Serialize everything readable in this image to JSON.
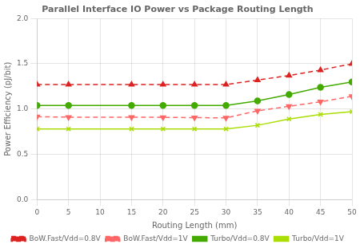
{
  "chart_data": {
    "type": "line",
    "title": "Parallel Interface IO Power vs Package Routing Length",
    "xlabel": "Routing Length (mm)",
    "ylabel": "Power Efficiency (pJ/bit)",
    "x": [
      0,
      5,
      15,
      20,
      25,
      30,
      35,
      40,
      45,
      50
    ],
    "series": [
      {
        "name": "BoW.Fast/Vdd=0.8V",
        "color": "#dd2222",
        "line_style": "dashed",
        "marker": "triangle-up",
        "values": [
          1.27,
          1.27,
          1.27,
          1.27,
          1.27,
          1.27,
          1.32,
          1.37,
          1.43,
          1.5
        ]
      },
      {
        "name": "BoW.Fast/Vdd=1V",
        "color": "#ff6666",
        "line_style": "dashed",
        "marker": "triangle-down",
        "values": [
          0.915,
          0.91,
          0.91,
          0.908,
          0.905,
          0.902,
          0.98,
          1.03,
          1.08,
          1.14
        ]
      },
      {
        "name": "Turbo/Vdd=0.8V",
        "color": "#44aa00",
        "line_style": "solid",
        "marker": "circle",
        "values": [
          1.04,
          1.04,
          1.04,
          1.04,
          1.04,
          1.04,
          1.09,
          1.16,
          1.24,
          1.3
        ]
      },
      {
        "name": "Turbo/Vdd=1V",
        "color": "#aadd00",
        "line_style": "solid",
        "marker": "x",
        "values": [
          0.78,
          0.78,
          0.78,
          0.78,
          0.78,
          0.78,
          0.82,
          0.89,
          0.94,
          0.97
        ]
      }
    ],
    "xlim": [
      0,
      50
    ],
    "xticks": [
      0,
      5,
      10,
      15,
      20,
      25,
      30,
      35,
      40,
      45,
      50
    ],
    "ylim": [
      0,
      2
    ],
    "yticks": [
      {
        "value": 0,
        "label": "0.0"
      },
      {
        "value": 0.5,
        "label": "0.5"
      },
      {
        "value": 1,
        "label": "1.0"
      },
      {
        "value": 1.5,
        "label": "1.5"
      },
      {
        "value": 2,
        "label": "2.0"
      }
    ],
    "grid": true,
    "legend": "bottom"
  }
}
